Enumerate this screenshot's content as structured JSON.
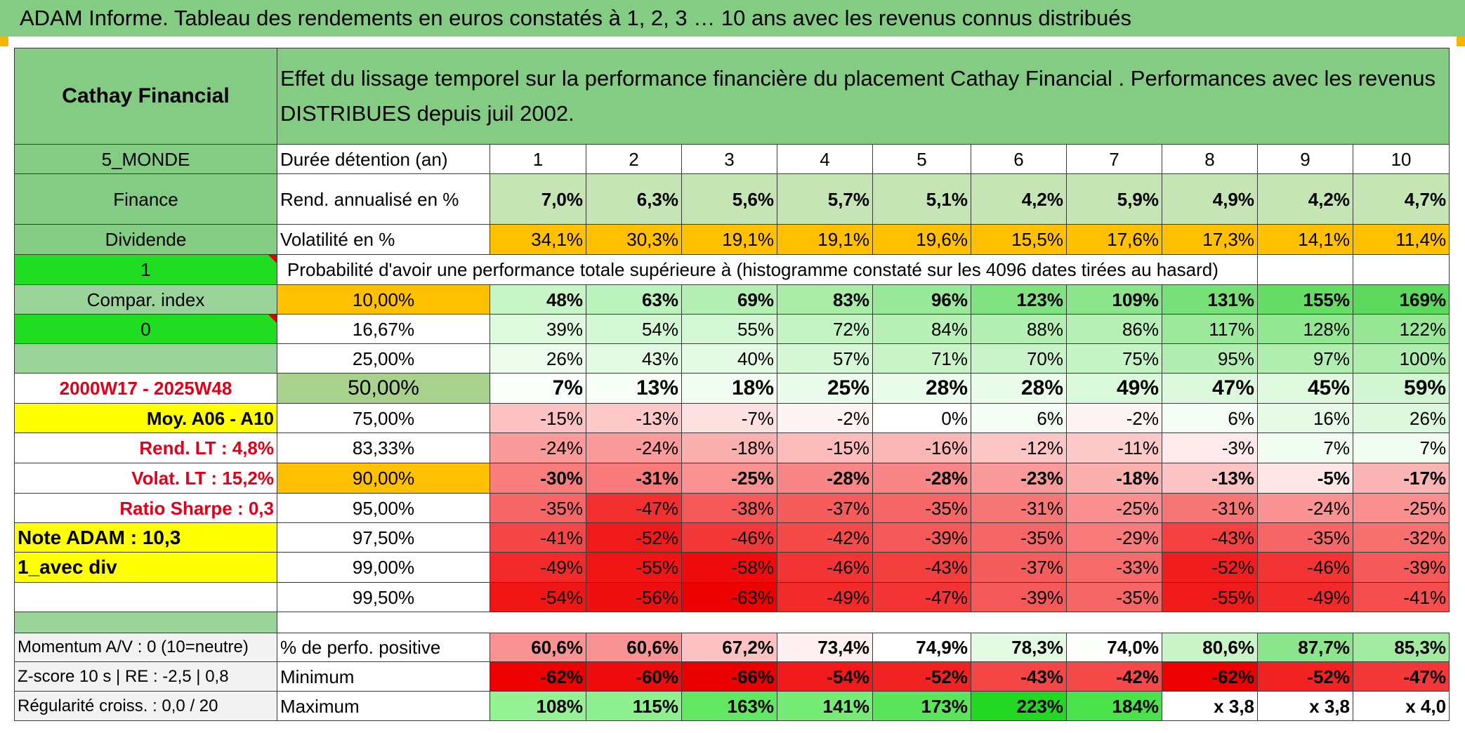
{
  "title": "ADAM Informe. Tableau des rendements en euros constatés à 1, 2, 3 … 10 ans avec les revenus connus distribués",
  "header": {
    "name": "Cathay Financial",
    "description": "Effet du lissage temporel sur la performance financière du placement Cathay Financial . Performances avec les revenus DISTRIBUES depuis juil 2002."
  },
  "left": {
    "zone": "5_MONDE",
    "sector": "Finance",
    "type": "Dividende",
    "flag1": "1",
    "compar": "Compar. index",
    "flag2": "0",
    "period": "2000W17 - 2025W48",
    "moy": "Moy. A06 - A10",
    "rend_lt": "Rend. LT :   4,8%",
    "volat_lt": "Volat. LT :   15,2%",
    "sharpe": "Ratio Sharpe :   0,3",
    "note": "Note ADAM : 10,3",
    "div": "1_avec div",
    "momentum": "Momentum A/V : 0 (10=neutre)",
    "zscore": "Z-score 10 s | RE : -2,5 | 0,8",
    "regularite": "Régularité croiss. : 0,0 / 20"
  },
  "labels": {
    "duree": "Durée détention (an)",
    "rend": "Rend. annualisé en %",
    "vol": "Volatilité en %",
    "proba": "Probabilité d'avoir une performance totale supérieure à (histogramme constaté sur les 4096 dates tirées au hasard)",
    "pct_pos": "% de perfo. positive",
    "min": "Minimum",
    "max": "Maximum"
  },
  "years": [
    "1",
    "2",
    "3",
    "4",
    "5",
    "6",
    "7",
    "8",
    "9",
    "10"
  ],
  "rend": [
    "7,0%",
    "6,3%",
    "5,6%",
    "5,7%",
    "5,1%",
    "4,2%",
    "5,9%",
    "4,9%",
    "4,2%",
    "4,7%"
  ],
  "vol": [
    "34,1%",
    "30,3%",
    "19,1%",
    "19,1%",
    "19,6%",
    "15,5%",
    "17,6%",
    "17,3%",
    "14,1%",
    "11,4%"
  ],
  "pct_rows": [
    {
      "p": "10,00%",
      "v": [
        "48%",
        "63%",
        "69%",
        "83%",
        "96%",
        "123%",
        "109%",
        "131%",
        "155%",
        "169%"
      ]
    },
    {
      "p": "16,67%",
      "v": [
        "39%",
        "54%",
        "55%",
        "72%",
        "84%",
        "88%",
        "86%",
        "117%",
        "128%",
        "122%"
      ]
    },
    {
      "p": "25,00%",
      "v": [
        "26%",
        "43%",
        "40%",
        "57%",
        "71%",
        "70%",
        "75%",
        "95%",
        "97%",
        "100%"
      ]
    },
    {
      "p": "50,00%",
      "v": [
        "7%",
        "13%",
        "18%",
        "25%",
        "28%",
        "28%",
        "49%",
        "47%",
        "45%",
        "59%"
      ]
    },
    {
      "p": "75,00%",
      "v": [
        "-15%",
        "-13%",
        "-7%",
        "-2%",
        "0%",
        "6%",
        "-2%",
        "6%",
        "16%",
        "26%"
      ]
    },
    {
      "p": "83,33%",
      "v": [
        "-24%",
        "-24%",
        "-18%",
        "-15%",
        "-16%",
        "-12%",
        "-11%",
        "-3%",
        "7%",
        "7%"
      ]
    },
    {
      "p": "90,00%",
      "v": [
        "-30%",
        "-31%",
        "-25%",
        "-28%",
        "-28%",
        "-23%",
        "-18%",
        "-13%",
        "-5%",
        "-17%"
      ]
    },
    {
      "p": "95,00%",
      "v": [
        "-35%",
        "-47%",
        "-38%",
        "-37%",
        "-35%",
        "-31%",
        "-25%",
        "-31%",
        "-24%",
        "-25%"
      ]
    },
    {
      "p": "97,50%",
      "v": [
        "-41%",
        "-52%",
        "-46%",
        "-42%",
        "-39%",
        "-35%",
        "-29%",
        "-43%",
        "-35%",
        "-32%"
      ]
    },
    {
      "p": "99,00%",
      "v": [
        "-49%",
        "-55%",
        "-58%",
        "-46%",
        "-43%",
        "-37%",
        "-33%",
        "-52%",
        "-46%",
        "-39%"
      ]
    },
    {
      "p": "99,50%",
      "v": [
        "-54%",
        "-56%",
        "-63%",
        "-49%",
        "-47%",
        "-39%",
        "-35%",
        "-55%",
        "-49%",
        "-41%"
      ]
    }
  ],
  "pct_pos": [
    "60,6%",
    "60,6%",
    "67,2%",
    "73,4%",
    "74,9%",
    "78,3%",
    "74,0%",
    "80,6%",
    "87,7%",
    "85,3%"
  ],
  "min": [
    "-62%",
    "-60%",
    "-66%",
    "-54%",
    "-52%",
    "-43%",
    "-42%",
    "-62%",
    "-52%",
    "-47%"
  ],
  "max": [
    "108%",
    "115%",
    "163%",
    "141%",
    "173%",
    "223%",
    "184%",
    "x 3,8",
    "x 3,8",
    "x 4,0"
  ]
}
